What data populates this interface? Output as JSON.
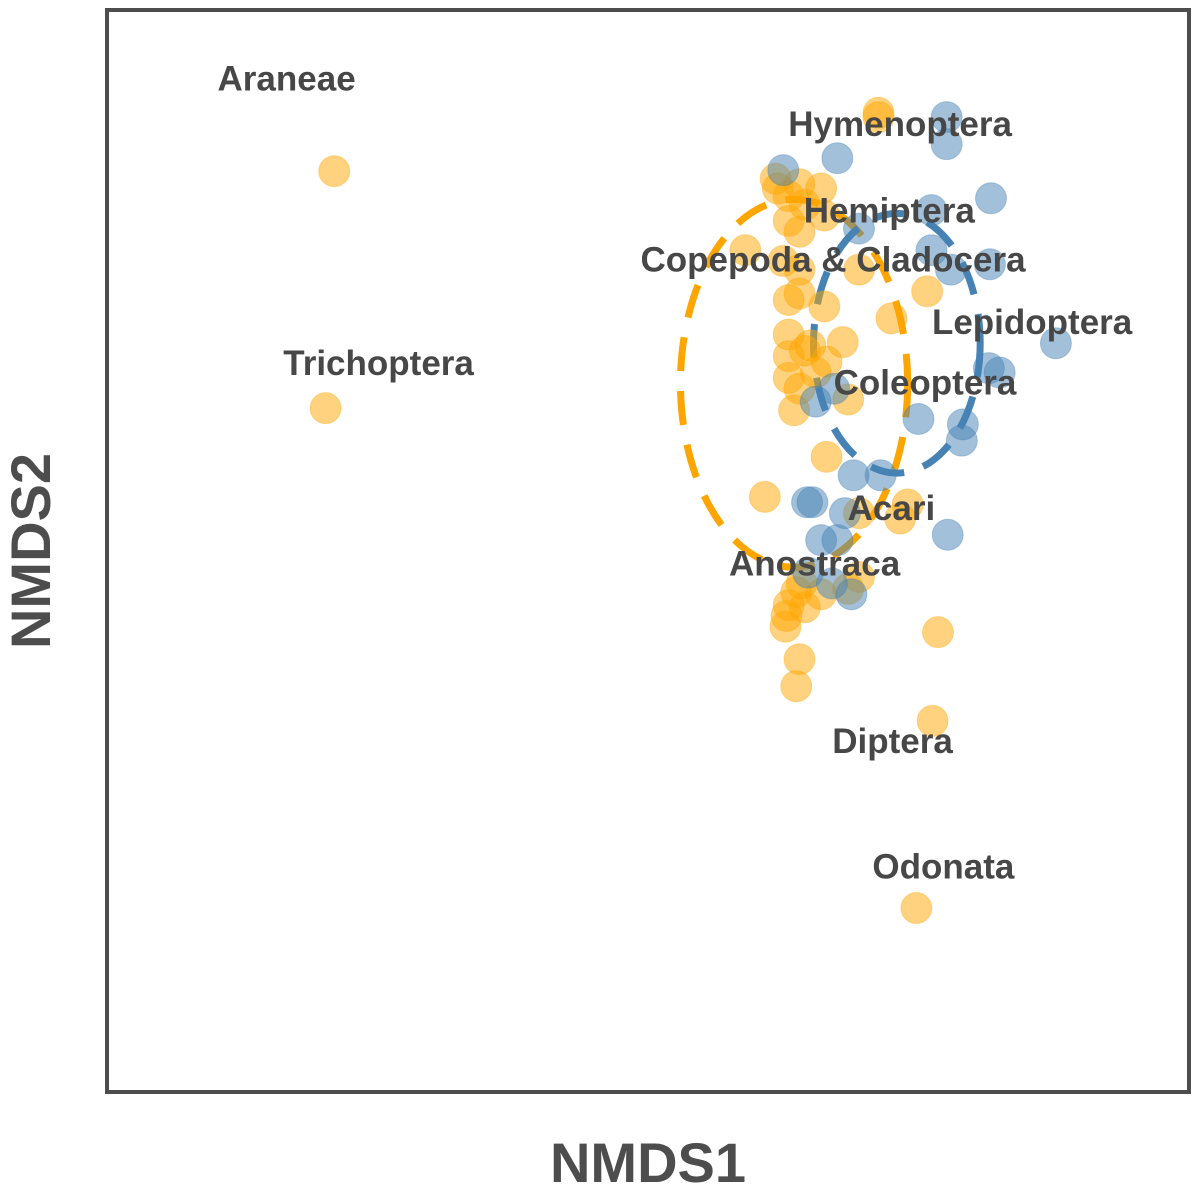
{
  "chart_data": {
    "type": "scatter",
    "xlabel": "NMDS1",
    "ylabel": "NMDS2",
    "xlim": [
      0,
      100
    ],
    "ylim": [
      0,
      100
    ],
    "ticks_shown": false,
    "grid": false,
    "legend": "none",
    "colors": {
      "group_orange": "#FFA500",
      "group_blue": "#4682B4",
      "frame": "#4d4d4d",
      "label_text": "#474747"
    },
    "series": [
      {
        "color": "#FFA500",
        "points": [
          [
            71.3,
            90.5
          ],
          [
            71.3,
            90.1
          ],
          [
            21.0,
            85.1
          ],
          [
            61.8,
            84.4
          ],
          [
            64.0,
            83.9
          ],
          [
            66.0,
            83.5
          ],
          [
            62.0,
            83.5
          ],
          [
            63.0,
            82.8
          ],
          [
            64.5,
            82.0
          ],
          [
            66.3,
            81.0
          ],
          [
            63.0,
            80.5
          ],
          [
            64.0,
            79.5
          ],
          [
            59.0,
            77.8
          ],
          [
            62.5,
            76.8
          ],
          [
            64.0,
            76.0
          ],
          [
            69.5,
            76.0
          ],
          [
            75.8,
            74.0
          ],
          [
            63.0,
            73.2
          ],
          [
            64.0,
            73.8
          ],
          [
            66.3,
            72.6
          ],
          [
            72.5,
            71.5
          ],
          [
            63.0,
            70.0
          ],
          [
            65.0,
            69.0
          ],
          [
            68.0,
            69.3
          ],
          [
            63.0,
            68.0
          ],
          [
            64.5,
            68.5
          ],
          [
            66.5,
            67.5
          ],
          [
            65.5,
            66.5
          ],
          [
            20.2,
            63.2
          ],
          [
            68.5,
            64.0
          ],
          [
            63.0,
            66.0
          ],
          [
            64.0,
            65.0
          ],
          [
            63.5,
            63.0
          ],
          [
            66.5,
            58.7
          ],
          [
            60.8,
            55.0
          ],
          [
            74.0,
            54.3
          ],
          [
            69.5,
            53.5
          ],
          [
            73.3,
            53.0
          ],
          [
            69.5,
            47.6
          ],
          [
            64.2,
            47.0
          ],
          [
            63.7,
            46.2
          ],
          [
            66.0,
            46.0
          ],
          [
            63.0,
            45.0
          ],
          [
            68.5,
            46.5
          ],
          [
            64.5,
            44.8
          ],
          [
            62.8,
            44.0
          ],
          [
            62.7,
            43.0
          ],
          [
            76.8,
            42.5
          ],
          [
            64.0,
            40.0
          ],
          [
            63.7,
            37.5
          ],
          [
            76.3,
            34.3
          ],
          [
            74.8,
            17.0
          ]
        ]
      },
      {
        "color": "#4682B4",
        "points": [
          [
            77.6,
            90.1
          ],
          [
            77.6,
            87.6
          ],
          [
            67.5,
            86.3
          ],
          [
            62.5,
            85.2
          ],
          [
            81.7,
            82.6
          ],
          [
            76.2,
            81.5
          ],
          [
            69.5,
            79.8
          ],
          [
            76.2,
            77.8
          ],
          [
            81.6,
            76.5
          ],
          [
            78.0,
            76.0
          ],
          [
            87.7,
            69.2
          ],
          [
            81.5,
            66.9
          ],
          [
            82.5,
            66.5
          ],
          [
            67.2,
            65.0
          ],
          [
            75.0,
            62.2
          ],
          [
            79.1,
            61.7
          ],
          [
            65.5,
            63.8
          ],
          [
            79.0,
            60.2
          ],
          [
            69.0,
            57.0
          ],
          [
            71.5,
            57.0
          ],
          [
            64.7,
            54.5
          ],
          [
            65.2,
            54.5
          ],
          [
            68.2,
            53.5
          ],
          [
            77.7,
            51.5
          ],
          [
            66.0,
            51.0
          ],
          [
            67.5,
            51.0
          ],
          [
            64.8,
            48.0
          ],
          [
            67.0,
            47.0
          ],
          [
            68.8,
            46.0
          ]
        ]
      }
    ],
    "ellipses": [
      {
        "color": "#FFA500",
        "center": [
          63.5,
          65.5
        ],
        "rx": 10.5,
        "ry": 17.0,
        "style": "dashed"
      },
      {
        "color": "#4682B4",
        "center": [
          73.0,
          69.2
        ],
        "rx": 7.7,
        "ry": 12.0,
        "style": "dashed"
      }
    ],
    "species_labels": [
      {
        "text": "Araneae",
        "x": 16.6,
        "y": 93.4
      },
      {
        "text": "Hymenoptera",
        "x": 73.3,
        "y": 89.2
      },
      {
        "text": "Hemiptera",
        "x": 72.3,
        "y": 81.2
      },
      {
        "text": "Copepoda & Cladocera",
        "x": 67.1,
        "y": 76.7
      },
      {
        "text": "Lepidoptera",
        "x": 85.5,
        "y": 70.9
      },
      {
        "text": "Trichoptera",
        "x": 25.1,
        "y": 67.1
      },
      {
        "text": "Coleoptera",
        "x": 75.6,
        "y": 65.3
      },
      {
        "text": "Acari",
        "x": 72.5,
        "y": 53.7
      },
      {
        "text": "Anostraca",
        "x": 65.4,
        "y": 48.6
      },
      {
        "text": "Diptera",
        "x": 72.6,
        "y": 32.2
      },
      {
        "text": "Odonata",
        "x": 77.3,
        "y": 20.6
      }
    ]
  }
}
